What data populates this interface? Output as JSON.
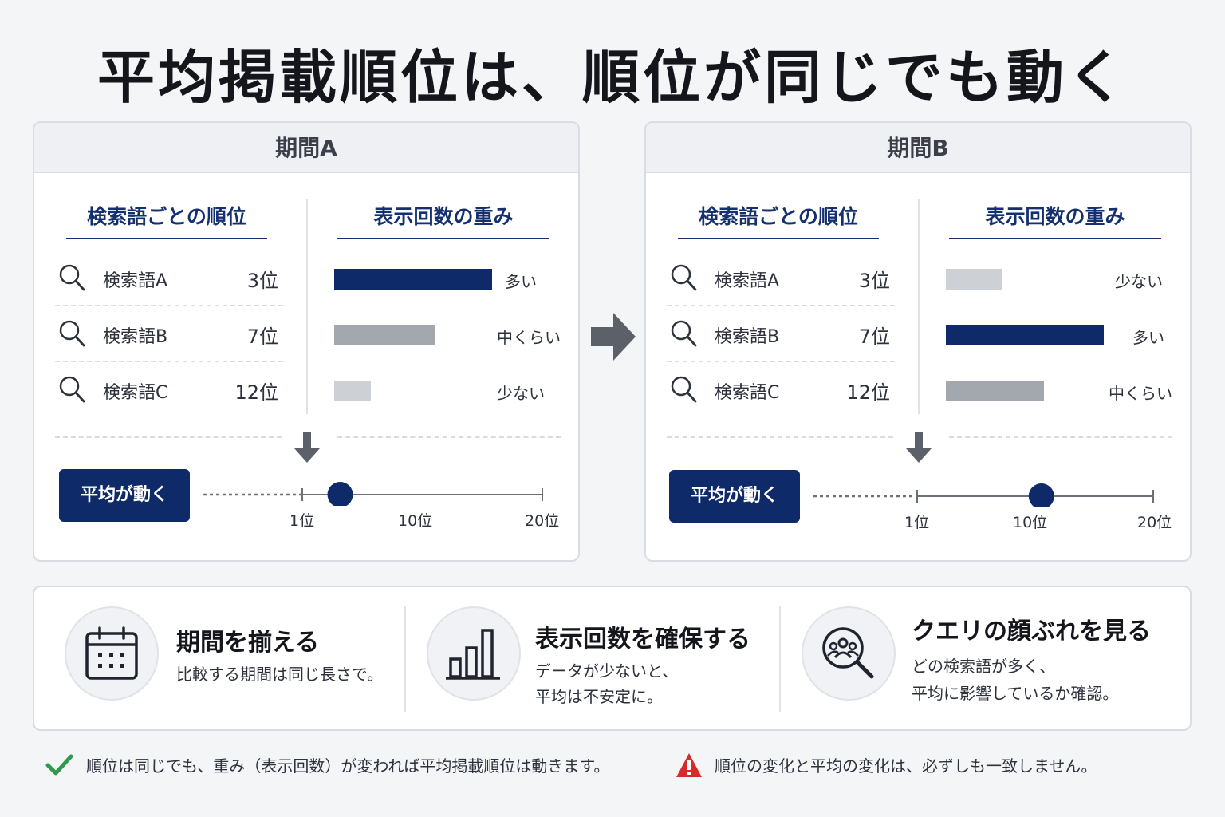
{
  "title": "平均掲載順位は、順位が同じでも動く",
  "colors": {
    "navy": "#0f2a68",
    "gray_mid": "#a3a7ae",
    "gray_light": "#cdd0d5",
    "check": "#2e9a4e",
    "warn": "#d52b2b"
  },
  "columns": {
    "rank_title": "検索語ごとの順位",
    "weight_title": "表示回数の重み"
  },
  "periods": [
    {
      "label": "期間A",
      "rows": [
        {
          "keyword": "検索語A",
          "rank": "3位",
          "weight": 1.0,
          "weight_label": "多い",
          "shade": "navy"
        },
        {
          "keyword": "検索語B",
          "rank": "7位",
          "weight": 0.64,
          "weight_label": "中くらい",
          "shade": "gray_mid"
        },
        {
          "keyword": "検索語C",
          "rank": "12位",
          "weight": 0.23,
          "weight_label": "少ない",
          "shade": "gray_light"
        }
      ],
      "button": "平均が動く",
      "scale": {
        "ticks": [
          "1位",
          "10位",
          "20位"
        ],
        "marker_rank": 4
      }
    },
    {
      "label": "期間B",
      "rows": [
        {
          "keyword": "検索語A",
          "rank": "3位",
          "weight": 0.36,
          "weight_label": "少ない",
          "shade": "gray_light"
        },
        {
          "keyword": "検索語B",
          "rank": "7位",
          "weight": 1.0,
          "weight_label": "多い",
          "shade": "navy"
        },
        {
          "keyword": "検索語C",
          "rank": "12位",
          "weight": 0.62,
          "weight_label": "中くらい",
          "shade": "gray_mid"
        }
      ],
      "button": "平均が動く",
      "scale": {
        "ticks": [
          "1位",
          "10位",
          "20位"
        ],
        "marker_rank": 11
      }
    }
  ],
  "tips": [
    {
      "icon": "calendar-icon",
      "title": "期間を揃える",
      "lines": [
        "比較する期間は同じ長さで。"
      ]
    },
    {
      "icon": "bar-chart-icon",
      "title": "表示回数を確保する",
      "lines": [
        "データが少ないと、",
        "平均は不安定に。"
      ]
    },
    {
      "icon": "people-search-icon",
      "title": "クエリの顔ぶれを見る",
      "lines": [
        "どの検索語が多く、",
        "平均に影響しているか確認。"
      ]
    }
  ],
  "notes": {
    "check": "順位は同じでも、重み（表示回数）が変われば平均掲載順位は動きます。",
    "warning": "順位の変化と平均の変化は、必ずしも一致しません。"
  }
}
